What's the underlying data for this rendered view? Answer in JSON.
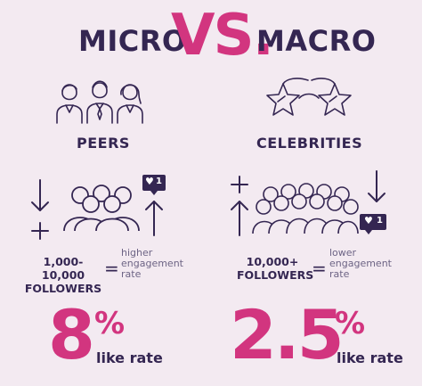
{
  "title": {
    "left": "MICRO",
    "vs": "VS.",
    "right": "MACRO"
  },
  "micro": {
    "label": "PEERS",
    "followers_line1": "1,000-10,000",
    "followers_line2": "FOLLOWERS",
    "equals": "=",
    "rate_desc_line1": "higher",
    "rate_desc_line2": "engagement",
    "rate_desc_line3": "rate",
    "big_number": "8",
    "percent": "%",
    "like_rate": "like rate",
    "notification_count": "1"
  },
  "macro": {
    "label": "CELEBRITIES",
    "followers_line1": "10,000+",
    "followers_line2": "FOLLOWERS",
    "equals": "=",
    "rate_desc_line1": "lower",
    "rate_desc_line2": "engagement",
    "rate_desc_line3": "rate",
    "big_number": "2.5",
    "percent": "%",
    "like_rate": "like rate",
    "notification_count": "1"
  },
  "colors": {
    "background": "#f3eaf1",
    "navy": "#342652",
    "magenta": "#d2357f"
  }
}
